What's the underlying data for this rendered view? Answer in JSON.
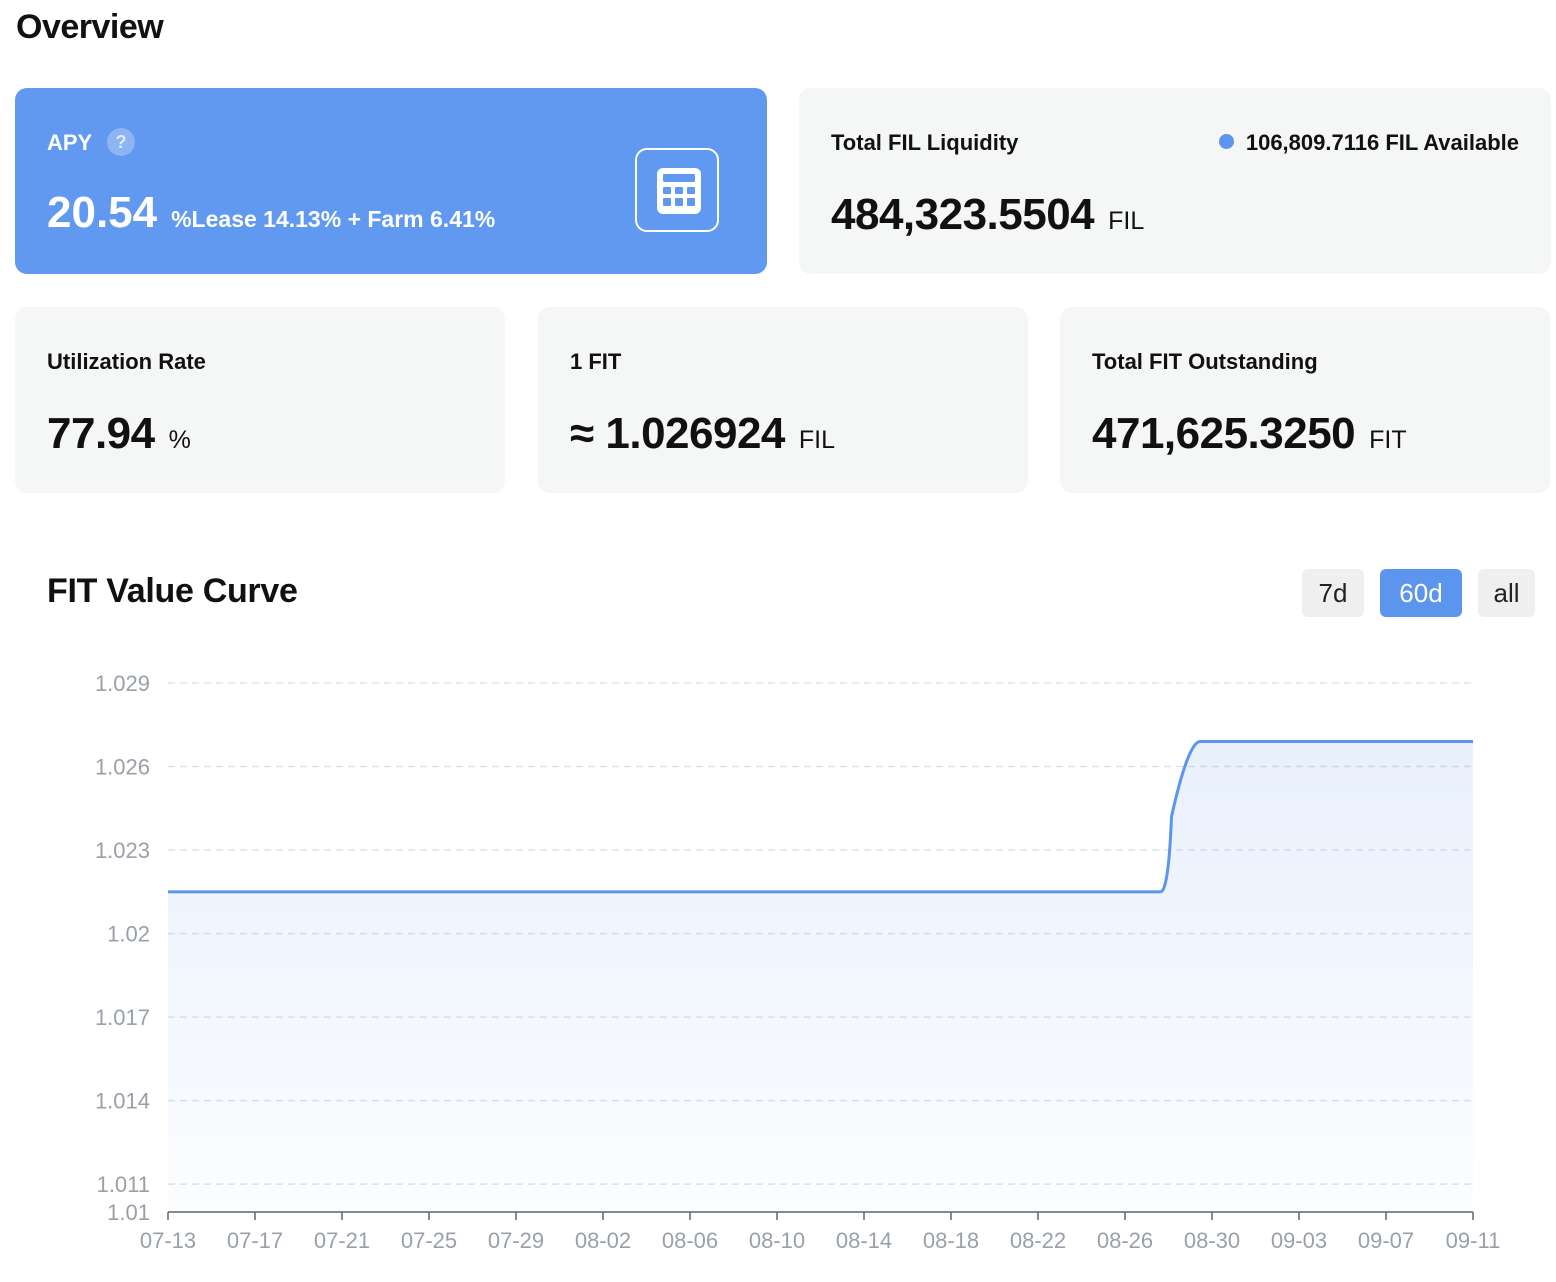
{
  "header": {
    "title": "Overview"
  },
  "apy": {
    "label": "APY",
    "help_glyph": "?",
    "value": "20.54",
    "breakdown": "%Lease 14.13% + Farm 6.41%",
    "calc_icon": "calculator-icon",
    "bg_color": "#6199f0"
  },
  "liquidity": {
    "label": "Total FIL Liquidity",
    "available": "106,809.7116 FIL Available",
    "value": "484,323.5504",
    "unit": "FIL"
  },
  "utilization": {
    "label": "Utilization Rate",
    "value": "77.94",
    "unit": "%"
  },
  "fit_price": {
    "label": "1 FIT",
    "value": "≈ 1.026924",
    "unit": "FIL"
  },
  "outstanding": {
    "label": "Total FIT Outstanding",
    "value": "471,625.3250",
    "unit": "FIT"
  },
  "chart": {
    "title": "FIT Value Curve",
    "ranges": [
      "7d",
      "60d",
      "all"
    ],
    "active_range": "60d",
    "accent_color": "#5b95ee"
  },
  "chart_data": {
    "type": "area",
    "x_ticks": [
      "07-13",
      "07-17",
      "07-21",
      "07-25",
      "07-29",
      "08-02",
      "08-06",
      "08-10",
      "08-14",
      "08-18",
      "08-22",
      "08-26",
      "08-30",
      "09-03",
      "09-07",
      "09-11"
    ],
    "y_ticks": [
      "1.029",
      "1.026",
      "1.023",
      "1.02",
      "1.017",
      "1.014",
      "1.011",
      "1.01"
    ],
    "ylim": [
      1.01,
      1.029
    ],
    "xlim": [
      "07-13",
      "09-11"
    ],
    "grid": true,
    "series": [
      {
        "points": [
          {
            "x": "07-13",
            "y": 1.0215
          },
          {
            "x": "08-28",
            "y": 1.0215
          },
          {
            "x": "08-29",
            "y": 1.0269
          },
          {
            "x": "09-11",
            "y": 1.0269
          }
        ]
      }
    ]
  }
}
